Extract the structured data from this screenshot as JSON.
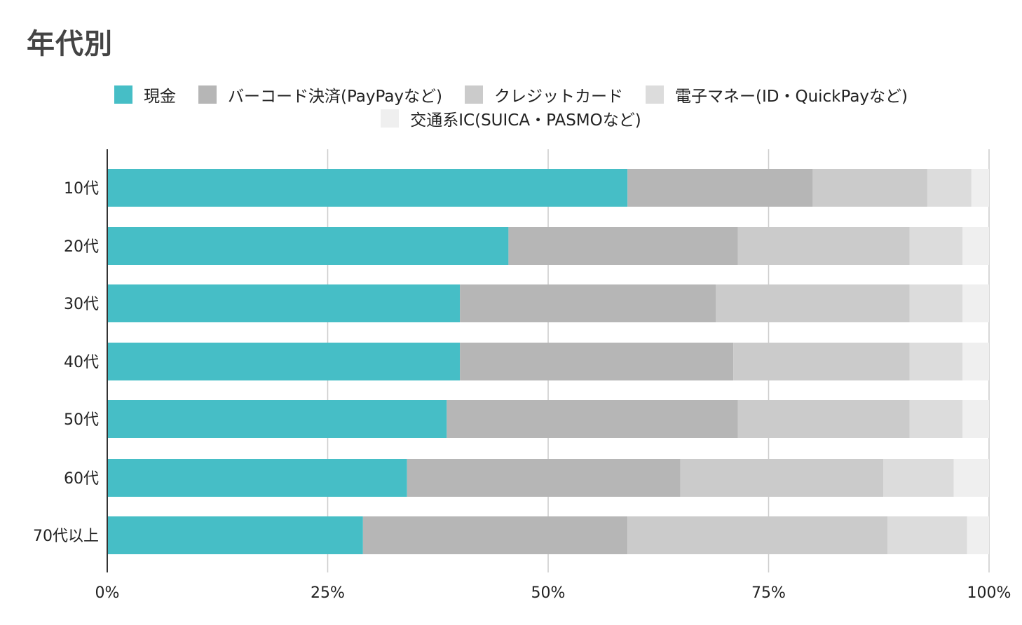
{
  "chart_data": {
    "type": "bar",
    "orientation": "horizontal",
    "stacked": "percent",
    "title": "年代別",
    "categories": [
      "10代",
      "20代",
      "30代",
      "40代",
      "50代",
      "60代",
      "70代以上"
    ],
    "series": [
      {
        "name": "現金",
        "color": "#46bec6",
        "values": [
          59,
          45.5,
          40,
          40,
          38.5,
          34,
          29
        ]
      },
      {
        "name": "バーコード決済(PayPayなど)",
        "color": "#b6b6b6",
        "values": [
          21,
          26,
          29,
          31,
          33,
          31,
          30
        ]
      },
      {
        "name": "クレジットカード",
        "color": "#cbcbcb",
        "values": [
          13,
          19.5,
          22,
          20,
          19.5,
          23,
          29.5
        ]
      },
      {
        "name": "電子マネー(ID・QuickPayなど)",
        "color": "#dcdcdc",
        "values": [
          5,
          6,
          6,
          6,
          6,
          8,
          9
        ]
      },
      {
        "name": "交通系IC(SUICA・PASMOなど)",
        "color": "#efefef",
        "values": [
          2,
          3,
          3,
          3,
          3,
          4,
          2.5
        ]
      }
    ],
    "x_ticks": [
      "0%",
      "25%",
      "50%",
      "75%",
      "100%"
    ],
    "xlim": [
      0,
      100
    ],
    "grid": true,
    "legend_position": "top"
  }
}
